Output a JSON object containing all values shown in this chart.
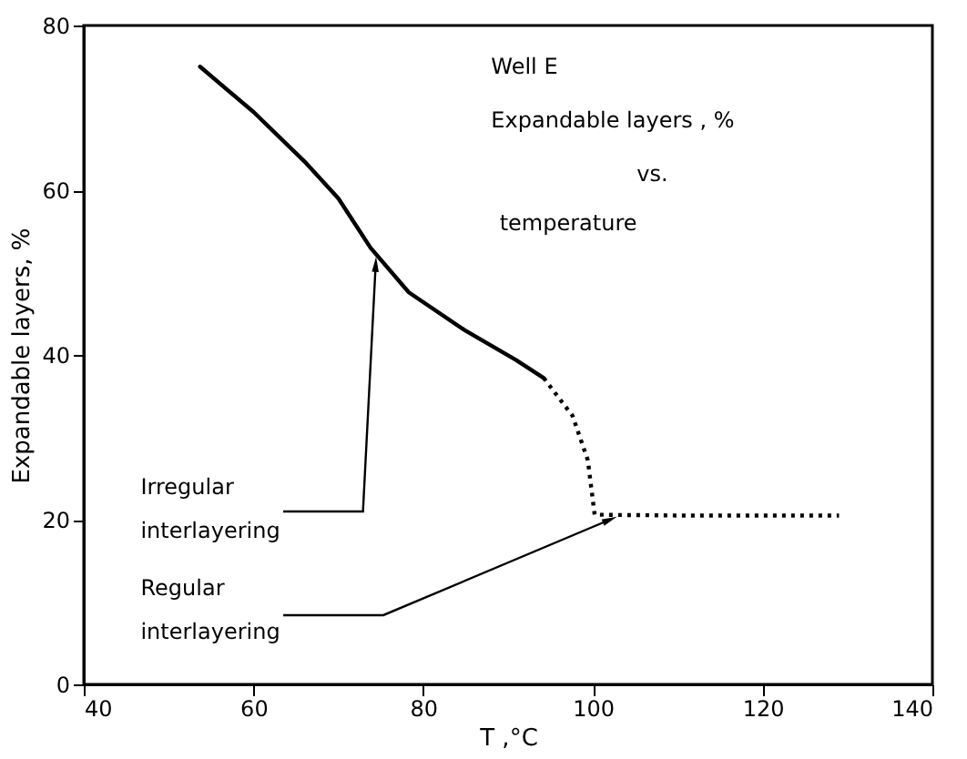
{
  "chart_data": {
    "type": "line",
    "xlabel": "T ,°C",
    "ylabel": "Expandable layers, %",
    "xlim": [
      40,
      140
    ],
    "xticks": [
      40,
      60,
      80,
      100,
      120,
      140
    ],
    "ylim": [
      0,
      80
    ],
    "yticks": [
      0,
      20,
      40,
      60,
      80
    ],
    "grid": false,
    "marker": "none",
    "series": [
      {
        "color": "#000000",
        "line_style": "solid",
        "x": [
          53.7,
          60,
          66,
          70,
          73.8,
          78.3,
          84.9,
          90.9,
          94.2
        ],
        "values": [
          75,
          69.5,
          63.5,
          59,
          53,
          47.6,
          43,
          39.4,
          37.2
        ]
      },
      {
        "color": "#000000",
        "line_style": "dotted",
        "x": [
          94.2,
          97.6,
          99.4,
          100.2,
          110,
          120,
          129
        ],
        "values": [
          37.2,
          32.6,
          27.2,
          20.6,
          20.5,
          20.5,
          20.5
        ]
      }
    ],
    "annotations": [
      "Well E",
      "Expandable layers , %",
      "vs.",
      "temperature",
      {
        "text": "Irregular interlayering",
        "x": 74.4,
        "y": 51
      },
      {
        "text": "Regular interlayering",
        "x": 102,
        "y": 20
      }
    ]
  }
}
